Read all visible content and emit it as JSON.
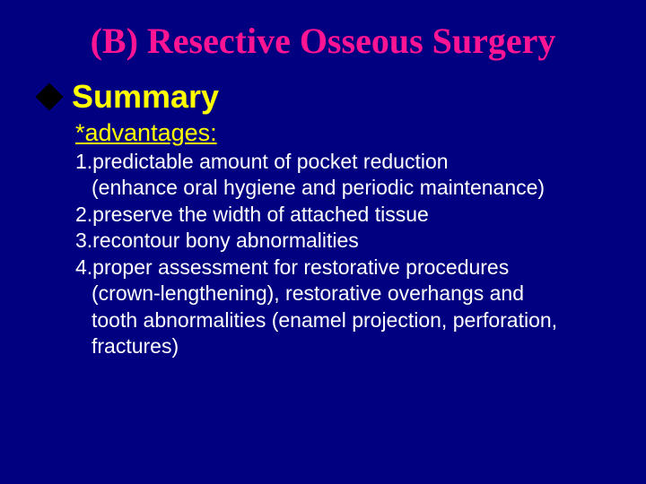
{
  "slide": {
    "title": "(B)  Resective Osseous Surgery",
    "summary_label": "Summary",
    "advantages_label": "*advantages:",
    "items": {
      "line1": "1.predictable amount of pocket reduction",
      "line1b": "(enhance oral hygiene and periodic maintenance)",
      "line2": "2.preserve the width of attached tissue",
      "line3": "3.recontour bony abnormalities",
      "line4": "4.proper assessment for restorative procedures",
      "line4b": "(crown-lengthening), restorative overhangs and",
      "line4c": "tooth abnormalities (enamel projection, perforation,",
      "line4d": "fractures)"
    }
  },
  "colors": {
    "background": "#000080",
    "title": "#ff1493",
    "highlight": "#ffff00",
    "body": "#ffffff",
    "bullet": "#000000"
  }
}
